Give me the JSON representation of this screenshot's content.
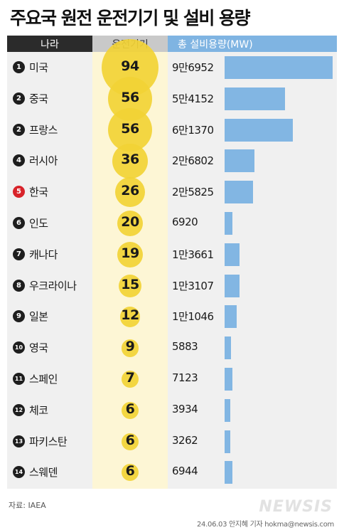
{
  "title": "주요국 원전 운전기기 및 설비 용량",
  "headers": {
    "country": "나라",
    "units": "운전기기",
    "capacity": "총 설비용량(MW)"
  },
  "source": "자료: IAEA",
  "credit": "24.06.03 안지혜 기자 hokma@newsis.com",
  "logo": "NEWSIS",
  "colors": {
    "bubble": "#f2d335",
    "bar": "#82b6e3",
    "rank": "#1e1e1e",
    "rank_highlight": "#d8232a"
  },
  "chart_data": {
    "type": "table",
    "title": "주요국 원전 운전기기 및 설비 용량",
    "columns": [
      "나라",
      "운전기기",
      "총 설비용량(MW)"
    ],
    "rows": [
      {
        "rank": "1",
        "country": "미국",
        "units": 94,
        "capacity_label": "9만6952",
        "capacity": 96952,
        "highlight": false
      },
      {
        "rank": "2",
        "country": "중국",
        "units": 56,
        "capacity_label": "5만4152",
        "capacity": 54152,
        "highlight": false
      },
      {
        "rank": "2",
        "country": "프랑스",
        "units": 56,
        "capacity_label": "6만1370",
        "capacity": 61370,
        "highlight": false
      },
      {
        "rank": "4",
        "country": "러시아",
        "units": 36,
        "capacity_label": "2만6802",
        "capacity": 26802,
        "highlight": false
      },
      {
        "rank": "5",
        "country": "한국",
        "units": 26,
        "capacity_label": "2만5825",
        "capacity": 25825,
        "highlight": true
      },
      {
        "rank": "6",
        "country": "인도",
        "units": 20,
        "capacity_label": "6920",
        "capacity": 6920,
        "highlight": false
      },
      {
        "rank": "7",
        "country": "캐나다",
        "units": 19,
        "capacity_label": "1만3661",
        "capacity": 13661,
        "highlight": false
      },
      {
        "rank": "8",
        "country": "우크라이나",
        "units": 15,
        "capacity_label": "1만3107",
        "capacity": 13107,
        "highlight": false
      },
      {
        "rank": "9",
        "country": "일본",
        "units": 12,
        "capacity_label": "1만1046",
        "capacity": 11046,
        "highlight": false
      },
      {
        "rank": "10",
        "country": "영국",
        "units": 9,
        "capacity_label": "5883",
        "capacity": 5883,
        "highlight": false
      },
      {
        "rank": "11",
        "country": "스페인",
        "units": 7,
        "capacity_label": "7123",
        "capacity": 7123,
        "highlight": false
      },
      {
        "rank": "12",
        "country": "체코",
        "units": 6,
        "capacity_label": "3934",
        "capacity": 3934,
        "highlight": false
      },
      {
        "rank": "13",
        "country": "파키스탄",
        "units": 6,
        "capacity_label": "3262",
        "capacity": 3262,
        "highlight": false
      },
      {
        "rank": "14",
        "country": "스웨덴",
        "units": 6,
        "capacity_label": "6944",
        "capacity": 6944,
        "highlight": false
      }
    ]
  }
}
